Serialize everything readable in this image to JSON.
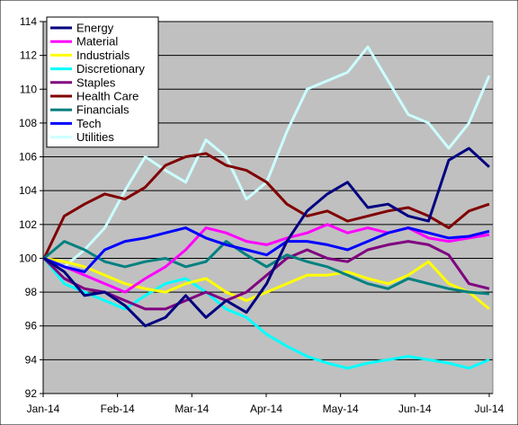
{
  "chart_data": {
    "type": "line",
    "title": "",
    "xlabel": "",
    "ylabel": "",
    "ylim": [
      92,
      114
    ],
    "yticks": [
      92,
      94,
      96,
      98,
      100,
      102,
      104,
      106,
      108,
      110,
      112,
      114
    ],
    "xticks": [
      "Jan-14",
      "Feb-14",
      "Mar-14",
      "Apr-14",
      "May-14",
      "Jun-14",
      "Jul-14"
    ],
    "grid": "horizontal",
    "plot_background": "#c0c0c0",
    "legend_position": "top-left",
    "series": [
      {
        "name": "Energy",
        "color": "#000080",
        "values": [
          100.0,
          99.2,
          97.8,
          98.0,
          97.2,
          96.0,
          96.5,
          97.8,
          96.5,
          97.5,
          96.8,
          98.5,
          101.0,
          102.8,
          103.8,
          104.5,
          103.0,
          103.2,
          102.5,
          102.2,
          105.8,
          106.5,
          105.4
        ]
      },
      {
        "name": "Material",
        "color": "#ff00ff",
        "values": [
          100.0,
          99.5,
          99.0,
          98.5,
          98.0,
          98.8,
          99.5,
          100.5,
          101.8,
          101.5,
          101.0,
          100.8,
          101.2,
          101.5,
          102.0,
          101.5,
          101.8,
          101.5,
          101.8,
          101.2,
          101.0,
          101.2,
          101.4
        ]
      },
      {
        "name": "Industrials",
        "color": "#ffff00",
        "values": [
          100.0,
          99.8,
          99.5,
          99.0,
          98.5,
          98.2,
          98.0,
          98.5,
          98.8,
          98.0,
          97.5,
          98.0,
          98.5,
          99.0,
          99.0,
          99.2,
          98.8,
          98.5,
          99.0,
          99.8,
          98.5,
          98.0,
          97.0
        ]
      },
      {
        "name": "Discretionary",
        "color": "#00ffff",
        "values": [
          100.0,
          98.5,
          98.0,
          97.5,
          97.0,
          97.8,
          98.5,
          98.8,
          98.0,
          97.0,
          96.5,
          95.5,
          94.8,
          94.2,
          93.8,
          93.5,
          93.8,
          94.0,
          94.2,
          94.0,
          93.8,
          93.5,
          94.0
        ]
      },
      {
        "name": "Staples",
        "color": "#800080",
        "values": [
          100.0,
          98.8,
          98.2,
          98.0,
          97.5,
          97.0,
          97.0,
          97.5,
          98.0,
          97.5,
          98.0,
          99.0,
          100.0,
          100.5,
          100.0,
          99.8,
          100.5,
          100.8,
          101.0,
          100.8,
          100.2,
          98.5,
          98.2
        ]
      },
      {
        "name": "Health Care",
        "color": "#800000",
        "values": [
          100.0,
          102.5,
          103.2,
          103.8,
          103.5,
          104.2,
          105.5,
          106.0,
          106.2,
          105.5,
          105.2,
          104.5,
          103.2,
          102.5,
          102.8,
          102.2,
          102.5,
          102.8,
          103.0,
          102.5,
          101.8,
          102.8,
          103.2
        ]
      },
      {
        "name": "Financials",
        "color": "#008080",
        "values": [
          100.0,
          101.0,
          100.5,
          99.8,
          99.5,
          99.8,
          100.0,
          99.5,
          99.8,
          101.0,
          100.2,
          99.5,
          100.2,
          99.8,
          99.5,
          99.0,
          98.5,
          98.2,
          98.8,
          98.5,
          98.2,
          98.0,
          97.9
        ]
      },
      {
        "name": "Tech",
        "color": "#0000ff",
        "values": [
          100.0,
          99.5,
          99.2,
          100.5,
          101.0,
          101.2,
          101.5,
          101.8,
          101.2,
          100.8,
          100.5,
          100.2,
          101.0,
          101.0,
          100.8,
          100.5,
          101.0,
          101.5,
          101.8,
          101.5,
          101.2,
          101.3,
          101.6
        ]
      },
      {
        "name": "Utilities",
        "color": "#ccffff",
        "values": [
          100.0,
          99.5,
          100.5,
          101.8,
          104.0,
          106.0,
          105.2,
          104.5,
          107.0,
          106.0,
          103.5,
          104.5,
          107.5,
          110.0,
          110.5,
          111.0,
          112.5,
          110.5,
          108.5,
          108.0,
          106.5,
          108.0,
          110.8
        ]
      }
    ]
  }
}
